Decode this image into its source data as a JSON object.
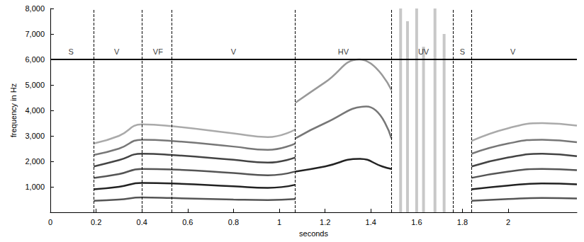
{
  "chart_data": {
    "type": "spectrogram",
    "xlabel": "seconds",
    "ylabel": "frequency in Hz",
    "xlim": [
      0,
      2.3
    ],
    "ylim": [
      0,
      8000
    ],
    "xticks": [
      0,
      0.2,
      0.4,
      0.6,
      0.8,
      1,
      1.2,
      1.4,
      1.6,
      1.8,
      2
    ],
    "yticks": [
      1000,
      2000,
      3000,
      4000,
      5000,
      6000,
      7000,
      8000
    ],
    "grid": false,
    "reference_line": 6000,
    "boundaries": [
      0.19,
      0.4,
      0.53,
      1.07,
      1.49,
      1.76,
      1.84
    ],
    "segments": {
      "labels": [
        "S",
        "V",
        "VF",
        "V",
        "HV",
        "UV",
        "S",
        "V"
      ],
      "x": [
        0.09,
        0.29,
        0.47,
        0.8,
        1.28,
        1.63,
        1.8,
        2.02
      ]
    },
    "series": [
      {
        "color": "#555555",
        "x": [
          0.19,
          0.3,
          0.4,
          0.53,
          0.8,
          0.95,
          1.07
        ],
        "values": [
          450,
          500,
          580,
          560,
          500,
          480,
          520
        ]
      },
      {
        "color": "#222222",
        "x": [
          0.19,
          0.3,
          0.4,
          0.53,
          0.8,
          0.95,
          1.07
        ],
        "values": [
          900,
          1000,
          1150,
          1130,
          1020,
          960,
          1080
        ]
      },
      {
        "color": "#555555",
        "x": [
          0.19,
          0.3,
          0.4,
          0.53,
          0.8,
          0.95,
          1.07
        ],
        "values": [
          1350,
          1500,
          1700,
          1680,
          1540,
          1450,
          1600
        ]
      },
      {
        "color": "#444444",
        "x": [
          0.19,
          0.3,
          0.4,
          0.53,
          0.8,
          0.95,
          1.07
        ],
        "values": [
          1800,
          2050,
          2300,
          2250,
          2060,
          1950,
          2150
        ]
      },
      {
        "color": "#777777",
        "x": [
          0.19,
          0.3,
          0.4,
          0.53,
          0.8,
          0.95,
          1.07
        ],
        "values": [
          2250,
          2500,
          2850,
          2800,
          2580,
          2450,
          2700
        ]
      },
      {
        "color": "#aaaaaa",
        "x": [
          0.19,
          0.3,
          0.4,
          0.53,
          0.8,
          0.95,
          1.07
        ],
        "values": [
          2700,
          3000,
          3450,
          3380,
          3100,
          2950,
          3250
        ]
      },
      {
        "color": "#222222",
        "x": [
          1.07,
          1.2,
          1.35,
          1.45,
          1.49
        ],
        "values": [
          1600,
          1800,
          2100,
          1800,
          1700
        ]
      },
      {
        "color": "#777777",
        "x": [
          1.07,
          1.2,
          1.38,
          1.49
        ],
        "values": [
          2900,
          3500,
          4150,
          2900
        ]
      },
      {
        "color": "#999999",
        "x": [
          1.07,
          1.2,
          1.35,
          1.49
        ],
        "values": [
          4300,
          5100,
          6000,
          4800
        ]
      },
      {
        "color": "#555555",
        "x": [
          1.84,
          2.0,
          2.15,
          2.3
        ],
        "values": [
          450,
          520,
          560,
          540
        ]
      },
      {
        "color": "#222222",
        "x": [
          1.84,
          2.0,
          2.15,
          2.3
        ],
        "values": [
          900,
          1050,
          1130,
          1100
        ]
      },
      {
        "color": "#555555",
        "x": [
          1.84,
          2.0,
          2.15,
          2.3
        ],
        "values": [
          1350,
          1600,
          1700,
          1650
        ]
      },
      {
        "color": "#444444",
        "x": [
          1.84,
          2.0,
          2.15,
          2.3
        ],
        "values": [
          1800,
          2150,
          2300,
          2200
        ]
      },
      {
        "color": "#777777",
        "x": [
          1.84,
          2.0,
          2.15,
          2.3
        ],
        "values": [
          2300,
          2700,
          2850,
          2750
        ]
      },
      {
        "color": "#aaaaaa",
        "x": [
          1.84,
          2.0,
          2.15,
          2.3
        ],
        "values": [
          2800,
          3300,
          3500,
          3400
        ]
      }
    ],
    "bursts": {
      "color": "#c8c8c8",
      "x": [
        1.53,
        1.56,
        1.6,
        1.63,
        1.68,
        1.72
      ],
      "low": [
        0,
        0,
        0,
        0,
        0,
        0
      ],
      "high": [
        8000,
        7500,
        8000,
        6500,
        8000,
        7000
      ]
    }
  }
}
